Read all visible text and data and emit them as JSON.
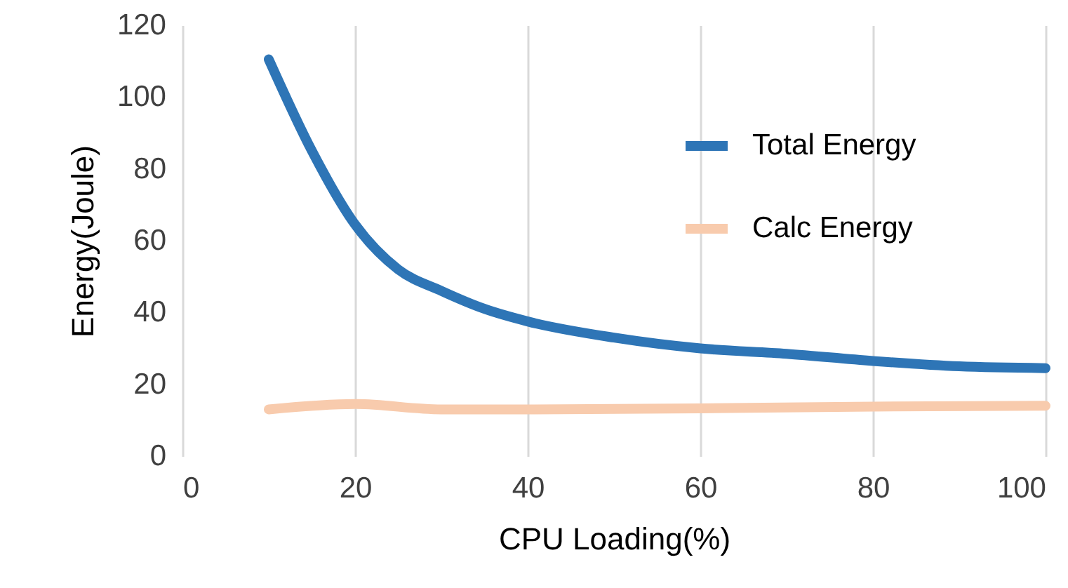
{
  "chart_data": {
    "type": "line",
    "xlabel": "CPU Loading(%)",
    "ylabel": "Energy(Joule)",
    "xlim": [
      0,
      100
    ],
    "xticks": [
      0,
      20,
      40,
      60,
      80,
      100
    ],
    "ylim": [
      0,
      120
    ],
    "yticks": [
      0,
      20,
      40,
      60,
      80,
      100,
      120
    ],
    "grid": "x",
    "legend": "right",
    "marker": "none",
    "line_style": "solid",
    "series": [
      {
        "name": "Total Energy",
        "color": "#2e75b6",
        "x": [
          10,
          15,
          20,
          25,
          30,
          35,
          40,
          50,
          60,
          70,
          80,
          90,
          100
        ],
        "values": [
          110.5,
          85,
          64.5,
          52,
          46,
          41,
          37.5,
          33,
          30,
          28.5,
          26.5,
          25,
          24.5
        ]
      },
      {
        "name": "Calc Energy",
        "color": "#f8cbad",
        "x": [
          10,
          20,
          30,
          40,
          60,
          80,
          100
        ],
        "values": [
          13,
          14.5,
          13,
          13,
          13.3,
          13.8,
          14
        ]
      }
    ]
  }
}
